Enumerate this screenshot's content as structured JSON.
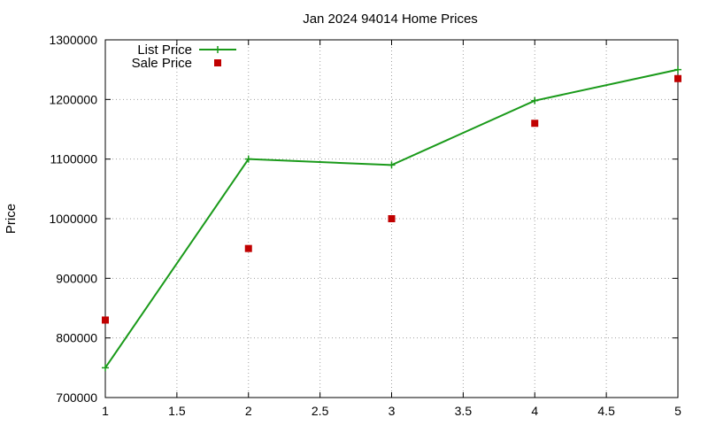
{
  "chart_data": {
    "type": "line",
    "title": "Jan 2024 94014 Home Prices",
    "xlabel": "",
    "ylabel": "Price",
    "xlim": [
      1,
      5
    ],
    "ylim": [
      700000,
      1300000
    ],
    "x_ticks": [
      "1",
      "1.5",
      "2",
      "2.5",
      "3",
      "3.5",
      "4",
      "4.5",
      "5"
    ],
    "y_ticks": [
      "700000",
      "800000",
      "900000",
      "1000000",
      "1100000",
      "1200000",
      "1300000"
    ],
    "grid": true,
    "legend_position": "top-left",
    "series": [
      {
        "name": "List Price",
        "style": "lines+crosses",
        "color": "#1a9a1a",
        "x": [
          1,
          2,
          3,
          4,
          5
        ],
        "y": [
          750000,
          1100000,
          1090000,
          1198000,
          1250000
        ]
      },
      {
        "name": "Sale Price",
        "style": "square-points",
        "color": "#c00000",
        "x": [
          1,
          2,
          3,
          4,
          5
        ],
        "y": [
          830000,
          950000,
          1000000,
          1160000,
          1235000
        ]
      }
    ]
  }
}
